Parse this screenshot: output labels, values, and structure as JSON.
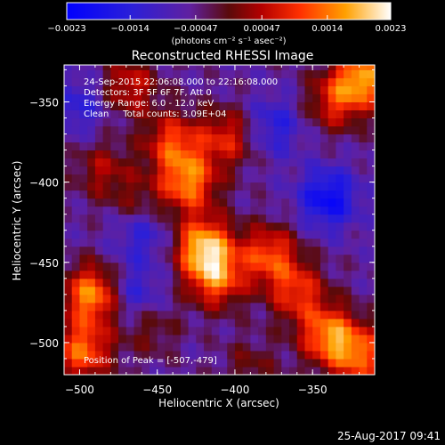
{
  "chart_data": {
    "type": "heatmap",
    "title": "Reconstructed RHESSI Image",
    "xlabel": "Heliocentric X (arcsec)",
    "ylabel": "Heliocentric Y (arcsec)",
    "xlim": [
      -510,
      -310
    ],
    "ylim": [
      -520,
      -327
    ],
    "x_ticks": [
      -500,
      -450,
      -400,
      -350
    ],
    "y_ticks": [
      -500,
      -450,
      -400,
      -350
    ],
    "x_tick_labels": [
      "−500",
      "−450",
      "−400",
      "−350"
    ],
    "y_tick_labels": [
      "−500",
      "−450",
      "−400",
      "−350"
    ],
    "colorbar": {
      "range": [
        -0.0023,
        0.0023
      ],
      "ticks": [
        -0.0023,
        -0.0014,
        -0.00047,
        0.00047,
        0.0014,
        0.0023
      ],
      "tick_labels": [
        "−0.0023",
        "−0.0014",
        "−0.00047",
        "0.00047",
        "0.0014",
        "0.0023"
      ],
      "units": "(photons cm⁻² s⁻¹ asec⁻²)"
    },
    "annotations": [
      "24-Sep-2015 22:06:08.000 to 22:16:08.000",
      "Detectors: 3F 5F 6F 7F, Att 0",
      "Energy Range: 6.0 - 12.0 keV",
      "Clean     Total counts: 3.09E+04"
    ],
    "peak_label": "Position of Peak = [-507,-479]",
    "peak_position": [
      -507,
      -479
    ],
    "features": [
      {
        "x": -420,
        "y": -440,
        "value": 0.0023
      },
      {
        "x": -430,
        "y": -400,
        "value": 0.0019
      },
      {
        "x": -412,
        "y": -460,
        "value": 0.0017
      },
      {
        "x": -440,
        "y": -375,
        "value": 0.0015
      },
      {
        "x": -405,
        "y": -372,
        "value": 0.0013
      },
      {
        "x": -492,
        "y": -470,
        "value": 0.0021
      },
      {
        "x": -498,
        "y": -505,
        "value": 0.0018
      },
      {
        "x": -340,
        "y": -495,
        "value": 0.0019
      },
      {
        "x": -320,
        "y": -508,
        "value": 0.0017
      },
      {
        "x": -318,
        "y": -335,
        "value": 0.0021
      },
      {
        "x": -336,
        "y": -350,
        "value": 0.0012
      },
      {
        "x": -378,
        "y": -445,
        "value": 0.0016
      },
      {
        "x": -360,
        "y": -468,
        "value": 0.0014
      },
      {
        "x": -468,
        "y": -340,
        "value": 0.0012
      },
      {
        "x": -485,
        "y": -392,
        "value": 0.0009
      },
      {
        "x": -462,
        "y": -415,
        "value": 0.0008
      },
      {
        "x": -455,
        "y": -490,
        "value": 0.0007
      },
      {
        "x": -390,
        "y": -515,
        "value": 0.0006
      },
      {
        "x": -460,
        "y": -430,
        "value": -0.001
      },
      {
        "x": -340,
        "y": -410,
        "value": -0.0015
      },
      {
        "x": -465,
        "y": -470,
        "value": -0.0009
      },
      {
        "x": -375,
        "y": -365,
        "value": -0.0009
      },
      {
        "x": -500,
        "y": -352,
        "value": -0.0008
      }
    ]
  },
  "footer": {
    "date": "25-Aug-2017 09:41"
  }
}
